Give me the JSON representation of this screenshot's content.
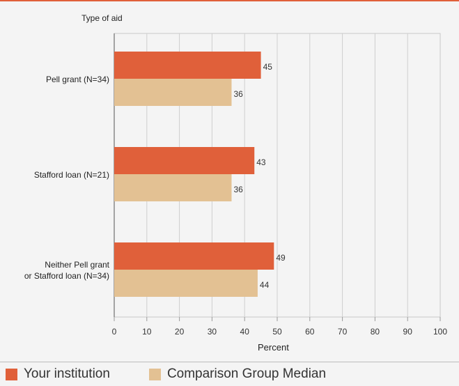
{
  "chart_data": {
    "type": "bar",
    "orientation": "horizontal",
    "title": "",
    "category_axis_title": "Type of aid",
    "xlabel": "Percent",
    "xlim": [
      0,
      100
    ],
    "xticks": [
      0,
      10,
      20,
      30,
      40,
      50,
      60,
      70,
      80,
      90,
      100
    ],
    "grid": true,
    "legend_position": "bottom-left",
    "categories": [
      "Pell grant  (N=34)",
      "Stafford loan (N=21)",
      "Neither Pell grant\nor Stafford loan (N=34)"
    ],
    "series": [
      {
        "name": "Your institution",
        "color": "#e0603a",
        "values": [
          45,
          43,
          49
        ]
      },
      {
        "name": "Comparison Group Median",
        "color": "#e3c193",
        "values": [
          36,
          36,
          44
        ]
      }
    ]
  }
}
